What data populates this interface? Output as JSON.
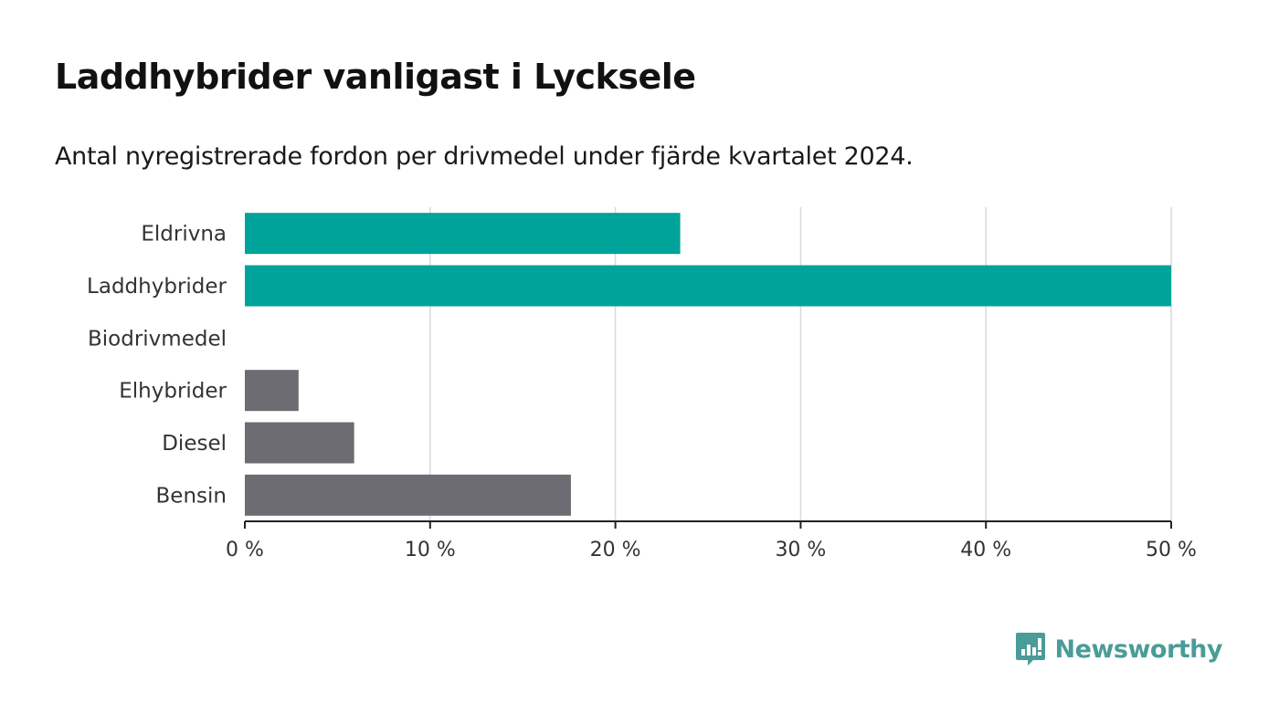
{
  "title": "Laddhybrider vanligast i Lycksele",
  "subtitle": "Antal nyregistrerade fordon per drivmedel under fjärde kvartalet 2024.",
  "brand": {
    "name": "Newsworthy",
    "icon": "newsworthy-logo-icon",
    "color": "#4a9c98"
  },
  "chart_data": {
    "type": "bar",
    "orientation": "horizontal",
    "categories": [
      "Eldrivna",
      "Laddhybrider",
      "Biodrivmedel",
      "Elhybrider",
      "Diesel",
      "Bensin"
    ],
    "values": [
      23.5,
      50.0,
      0,
      2.9,
      5.9,
      17.6
    ],
    "bar_colors": [
      "#00a39a",
      "#00a39a",
      "#00a39a",
      "#6d6c72",
      "#6d6c72",
      "#6d6c72"
    ],
    "xlim": [
      0,
      50
    ],
    "x_ticks": [
      0,
      10,
      20,
      30,
      40,
      50
    ],
    "x_tick_labels": [
      "0 %",
      "10 %",
      "20 %",
      "30 %",
      "40 %",
      "50 %"
    ],
    "unit": "%",
    "grid": "vertical",
    "xlabel": "",
    "ylabel": ""
  }
}
